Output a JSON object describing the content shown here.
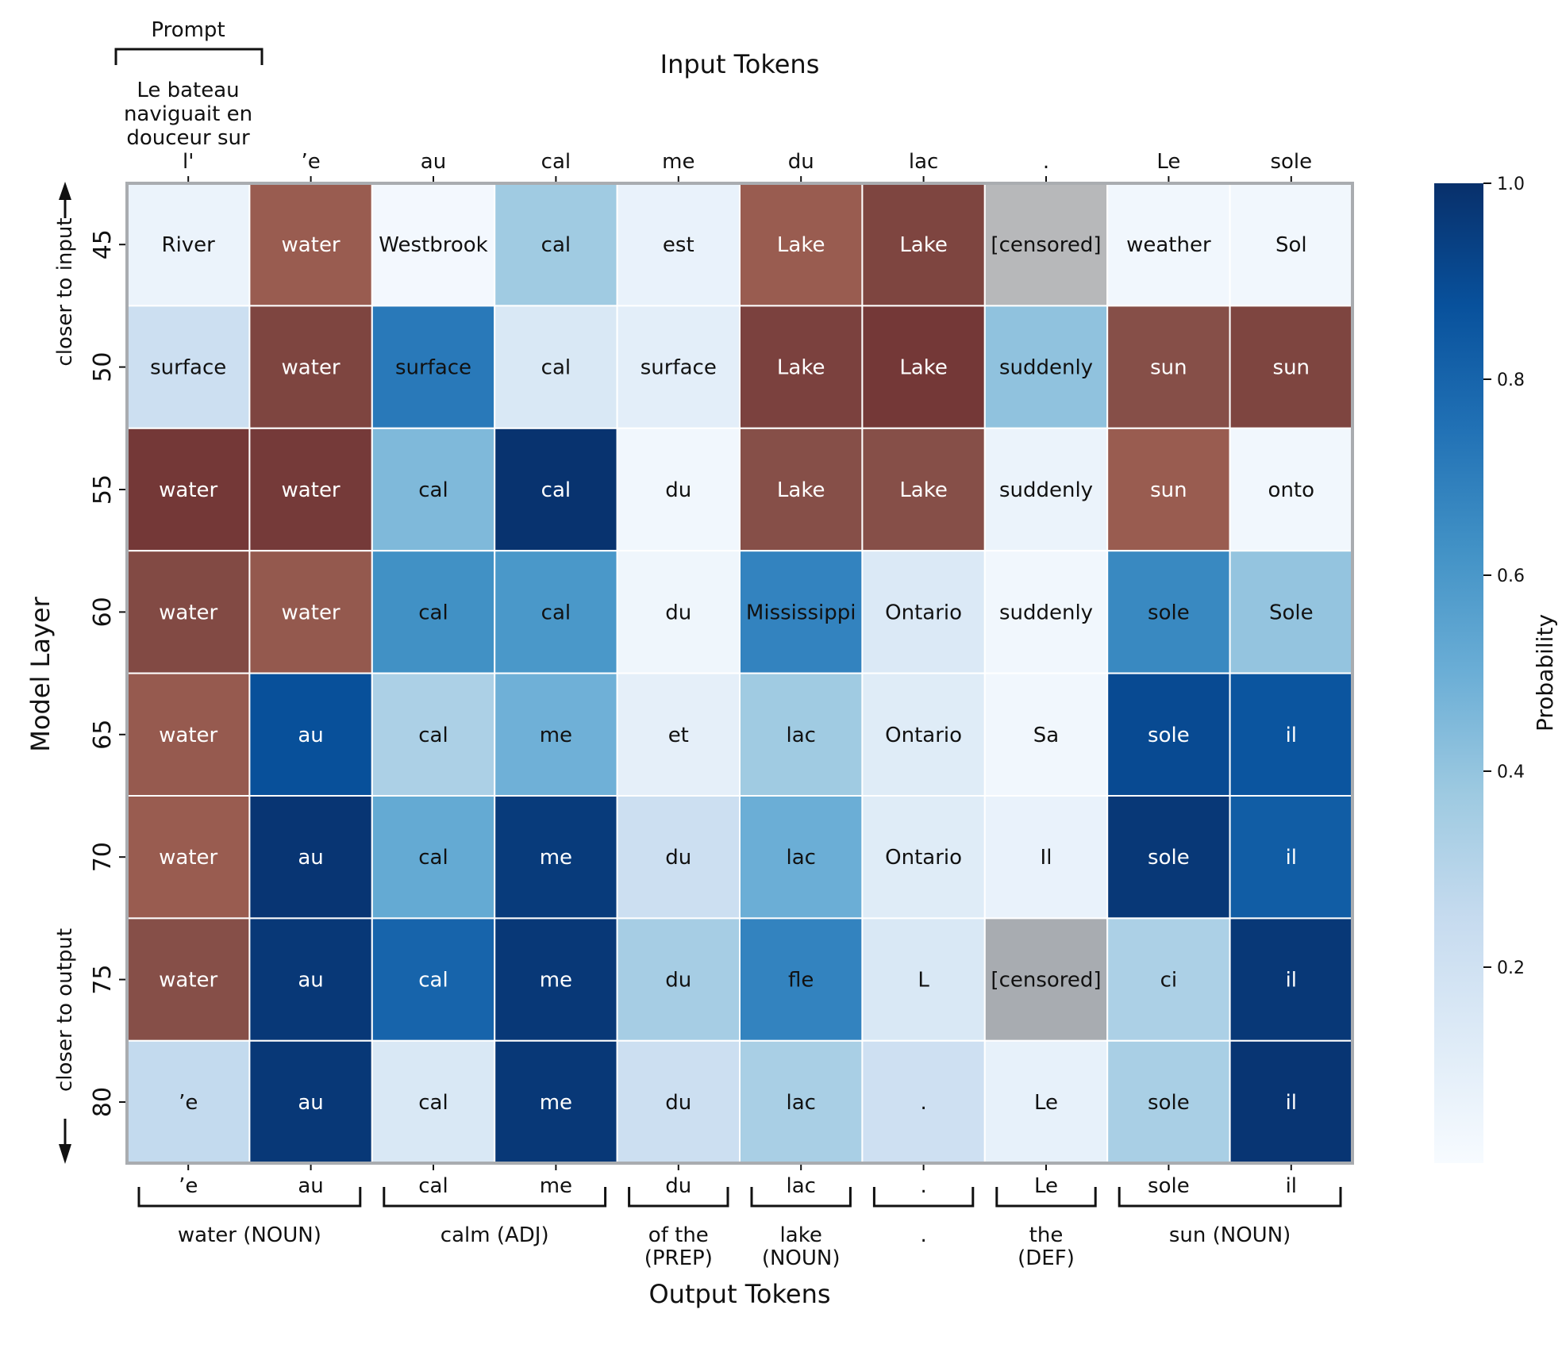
{
  "chart_data": {
    "type": "heatmap",
    "x_title": "Input Tokens",
    "x_bottom_title": "Output Tokens",
    "y_title": "Model Layer",
    "prompt_label": "Prompt",
    "prompt_text": [
      "Le bateau",
      "naviguait en",
      "douceur sur"
    ],
    "input_tokens": [
      "l'",
      "’e",
      "au",
      "cal",
      "me",
      "du",
      "lac",
      ".",
      "Le",
      "sole"
    ],
    "output_tokens": [
      "’e",
      "au",
      "cal",
      "me",
      "du",
      "lac",
      ".",
      "Le",
      "sole",
      "il"
    ],
    "output_groups": [
      {
        "lines": [
          "water (NOUN)"
        ],
        "from": 0,
        "to": 1
      },
      {
        "lines": [
          "calm (ADJ)"
        ],
        "from": 2,
        "to": 3
      },
      {
        "lines": [
          "of the",
          "(PREP)"
        ],
        "from": 4,
        "to": 4
      },
      {
        "lines": [
          "lake",
          "(NOUN)"
        ],
        "from": 5,
        "to": 5
      },
      {
        "lines": [
          "."
        ],
        "from": 6,
        "to": 6
      },
      {
        "lines": [
          "the",
          "(DEF)"
        ],
        "from": 7,
        "to": 7
      },
      {
        "lines": [
          "sun (NOUN)"
        ],
        "from": 8,
        "to": 9
      }
    ],
    "layers": [
      45,
      50,
      55,
      60,
      65,
      70,
      75,
      80
    ],
    "top_note": "closer to input",
    "bottom_note": "closer to output",
    "colorbar": {
      "label": "Probability",
      "min": 0,
      "max": 1,
      "ticks": [
        0.2,
        0.4,
        0.6,
        0.8,
        1.0
      ],
      "low_color": "#f7fbff",
      "high_color": "#08306b"
    },
    "cells": [
      [
        {
          "t": "River",
          "p": 0.06,
          "c": "blue"
        },
        {
          "t": "water",
          "p": 0.55,
          "c": "brown"
        },
        {
          "t": "Westbrook",
          "p": 0.02,
          "c": "blue"
        },
        {
          "t": "cal",
          "p": 0.37,
          "c": "blue"
        },
        {
          "t": "est",
          "p": 0.07,
          "c": "blue"
        },
        {
          "t": "Lake",
          "p": 0.55,
          "c": "brown"
        },
        {
          "t": "Lake",
          "p": 0.85,
          "c": "brown"
        },
        {
          "t": "[censored]",
          "p": 0,
          "c": "censored"
        },
        {
          "t": "weather",
          "p": 0.03,
          "c": "blue"
        },
        {
          "t": "Sol",
          "p": 0.03,
          "c": "blue"
        }
      ],
      [
        {
          "t": "surface",
          "p": 0.22,
          "c": "blue"
        },
        {
          "t": "water",
          "p": 0.85,
          "c": "brown"
        },
        {
          "t": "surface",
          "p": 0.72,
          "c": "blue"
        },
        {
          "t": "cal",
          "p": 0.15,
          "c": "blue"
        },
        {
          "t": "surface",
          "p": 0.1,
          "c": "blue"
        },
        {
          "t": "Lake",
          "p": 0.88,
          "c": "brown"
        },
        {
          "t": "Lake",
          "p": 0.97,
          "c": "brown"
        },
        {
          "t": "suddenly",
          "p": 0.41,
          "c": "blue"
        },
        {
          "t": "sun",
          "p": 0.75,
          "c": "brown"
        },
        {
          "t": "sun",
          "p": 0.85,
          "c": "brown"
        }
      ],
      [
        {
          "t": "water",
          "p": 0.97,
          "c": "brown"
        },
        {
          "t": "water",
          "p": 0.95,
          "c": "brown"
        },
        {
          "t": "cal",
          "p": 0.45,
          "c": "blue"
        },
        {
          "t": "cal",
          "p": 0.99,
          "c": "blue"
        },
        {
          "t": "du",
          "p": 0.03,
          "c": "blue"
        },
        {
          "t": "Lake",
          "p": 0.75,
          "c": "brown"
        },
        {
          "t": "Lake",
          "p": 0.75,
          "c": "brown"
        },
        {
          "t": "suddenly",
          "p": 0.06,
          "c": "blue"
        },
        {
          "t": "sun",
          "p": 0.55,
          "c": "brown"
        },
        {
          "t": "onto",
          "p": 0.03,
          "c": "blue"
        }
      ],
      [
        {
          "t": "water",
          "p": 0.8,
          "c": "brown"
        },
        {
          "t": "water",
          "p": 0.6,
          "c": "brown"
        },
        {
          "t": "cal",
          "p": 0.63,
          "c": "blue"
        },
        {
          "t": "cal",
          "p": 0.6,
          "c": "blue"
        },
        {
          "t": "du",
          "p": 0.04,
          "c": "blue"
        },
        {
          "t": "Mississippi",
          "p": 0.68,
          "c": "blue"
        },
        {
          "t": "Ontario",
          "p": 0.14,
          "c": "blue"
        },
        {
          "t": "suddenly",
          "p": 0.03,
          "c": "blue"
        },
        {
          "t": "sole",
          "p": 0.66,
          "c": "blue"
        },
        {
          "t": "Sole",
          "p": 0.4,
          "c": "blue"
        }
      ],
      [
        {
          "t": "water",
          "p": 0.58,
          "c": "brown"
        },
        {
          "t": "au",
          "p": 0.88,
          "c": "blue"
        },
        {
          "t": "cal",
          "p": 0.33,
          "c": "blue"
        },
        {
          "t": "me",
          "p": 0.49,
          "c": "blue"
        },
        {
          "t": "et",
          "p": 0.09,
          "c": "blue"
        },
        {
          "t": "lac",
          "p": 0.37,
          "c": "blue"
        },
        {
          "t": "Ontario",
          "p": 0.12,
          "c": "blue"
        },
        {
          "t": "Sa",
          "p": 0.03,
          "c": "blue"
        },
        {
          "t": "sole",
          "p": 0.9,
          "c": "blue"
        },
        {
          "t": "il",
          "p": 0.86,
          "c": "blue"
        }
      ],
      [
        {
          "t": "water",
          "p": 0.55,
          "c": "brown"
        },
        {
          "t": "au",
          "p": 0.98,
          "c": "blue"
        },
        {
          "t": "cal",
          "p": 0.52,
          "c": "blue"
        },
        {
          "t": "me",
          "p": 0.96,
          "c": "blue"
        },
        {
          "t": "du",
          "p": 0.22,
          "c": "blue"
        },
        {
          "t": "lac",
          "p": 0.5,
          "c": "blue"
        },
        {
          "t": "Ontario",
          "p": 0.12,
          "c": "blue"
        },
        {
          "t": "Il",
          "p": 0.07,
          "c": "blue"
        },
        {
          "t": "sole",
          "p": 0.97,
          "c": "blue"
        },
        {
          "t": "il",
          "p": 0.83,
          "c": "blue"
        }
      ],
      [
        {
          "t": "water",
          "p": 0.75,
          "c": "brown"
        },
        {
          "t": "au",
          "p": 0.97,
          "c": "blue"
        },
        {
          "t": "cal",
          "p": 0.8,
          "c": "blue"
        },
        {
          "t": "me",
          "p": 0.97,
          "c": "blue"
        },
        {
          "t": "du",
          "p": 0.35,
          "c": "blue"
        },
        {
          "t": "fle",
          "p": 0.68,
          "c": "blue"
        },
        {
          "t": "L",
          "p": 0.15,
          "c": "blue"
        },
        {
          "t": "[censored]",
          "p": 0,
          "c": "censored"
        },
        {
          "t": "ci",
          "p": 0.33,
          "c": "blue"
        },
        {
          "t": "il",
          "p": 0.97,
          "c": "blue"
        }
      ],
      [
        {
          "t": "’e",
          "p": 0.26,
          "c": "blue"
        },
        {
          "t": "au",
          "p": 0.97,
          "c": "blue"
        },
        {
          "t": "cal",
          "p": 0.15,
          "c": "blue"
        },
        {
          "t": "me",
          "p": 0.97,
          "c": "blue"
        },
        {
          "t": "du",
          "p": 0.22,
          "c": "blue"
        },
        {
          "t": "lac",
          "p": 0.34,
          "c": "blue"
        },
        {
          "t": ".",
          "p": 0.21,
          "c": "blue"
        },
        {
          "t": "Le",
          "p": 0.08,
          "c": "blue"
        },
        {
          "t": "sole",
          "p": 0.34,
          "c": "blue"
        },
        {
          "t": "il",
          "p": 0.98,
          "c": "blue"
        }
      ]
    ]
  }
}
